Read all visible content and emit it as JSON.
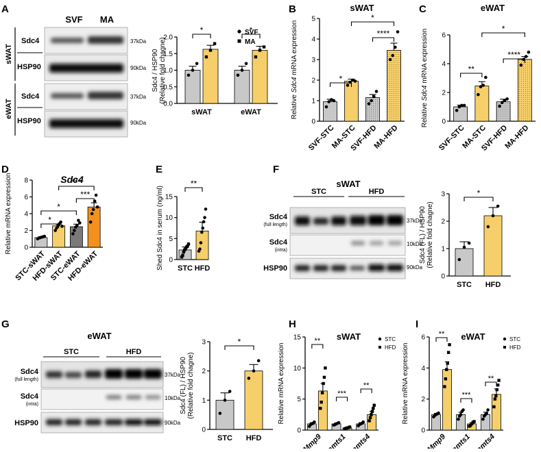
{
  "panel_letters": {
    "A": "A",
    "B": "B",
    "C": "C",
    "D": "D",
    "E": "E",
    "F": "F",
    "G": "G",
    "H": "H",
    "I": "I"
  },
  "sig": {
    "s1": "*",
    "s2": "**",
    "s3": "***",
    "s4": "****"
  },
  "blots": {
    "A": {
      "col_svf": "SVF",
      "col_ma": "MA",
      "group_swat": "sWAT",
      "group_ewat": "eWAT",
      "sdc4": "Sdc4",
      "hsp90": "HSP90",
      "kda37": "37kDa",
      "kda90": "90kDa"
    },
    "F": {
      "title": "sWAT",
      "stc": "STC",
      "hfd": "HFD",
      "sdc4": "Sdc4",
      "full_length": "(full length)",
      "intra": "(intra)",
      "hsp90": "HSP90",
      "kda37": "37kDa",
      "kda10": "10kDa",
      "kda90": "90kDa"
    },
    "G": {
      "title": "eWAT",
      "stc": "STC",
      "hfd": "HFD",
      "sdc4": "Sdc4",
      "full_length": "(full length)",
      "intra": "(intra)",
      "hsp90": "HSP90",
      "kda37": "37kDa",
      "kda10": "10kDa",
      "kda90": "90kDa"
    }
  },
  "chart_data": [
    {
      "id": "A",
      "type": "bar",
      "title": "",
      "ylabel_1": "Sdc4 / HSP90",
      "ylabel_2": "(Relative fold chagne)",
      "ylim": [
        0,
        2.0
      ],
      "yticks": [
        "0.0",
        "0.5",
        "1.0",
        "1.5",
        "2.0"
      ],
      "categories": [
        "sWAT",
        "eWAT"
      ],
      "legend": [
        "SVF",
        "MA"
      ],
      "series": [
        {
          "name": "SVF",
          "values": [
            1.0,
            1.0
          ],
          "sem": [
            0.12,
            0.12
          ],
          "points": [
            [
              0.85,
              1.0,
              1.2
            ],
            [
              0.85,
              1.0,
              1.2
            ]
          ]
        },
        {
          "name": "MA",
          "values": [
            1.63,
            1.6
          ],
          "sem": [
            0.12,
            0.12
          ],
          "points": [
            [
              1.4,
              1.6,
              1.8
            ],
            [
              1.4,
              1.6,
              1.7
            ]
          ]
        }
      ],
      "sig": [
        "*",
        "*"
      ]
    },
    {
      "id": "B",
      "type": "bar",
      "title": "sWAT",
      "ylabel_pre": "Relative ",
      "ylabel_gene": "Sdc4",
      "ylabel_post": " mRNA expression",
      "ylim": [
        0,
        5
      ],
      "yticks": [
        "0",
        "1",
        "2",
        "3",
        "4",
        "5"
      ],
      "categories": [
        "SVF-STC",
        "MA-STC",
        "SVF-HFD",
        "MA-HFD"
      ],
      "values": [
        0.95,
        1.95,
        1.15,
        3.45
      ],
      "sem": [
        0.12,
        0.1,
        0.15,
        0.35
      ],
      "points": [
        [
          0.7,
          0.95,
          1.05,
          1.0
        ],
        [
          1.75,
          1.9,
          2.0,
          1.95
        ],
        [
          0.85,
          1.0,
          1.2,
          1.45
        ],
        [
          3.0,
          3.2,
          3.6,
          4.35
        ]
      ],
      "sig": [
        "*",
        "****",
        "*"
      ]
    },
    {
      "id": "C",
      "type": "bar",
      "title": "eWAT",
      "ylabel_pre": "Relative ",
      "ylabel_gene": "Sdc4",
      "ylabel_post": " mRNA expression",
      "ylim": [
        0,
        6
      ],
      "yticks": [
        "0",
        "2",
        "4",
        "6"
      ],
      "categories": [
        "SVF-STC",
        "MA-STC",
        "SVF-HFD",
        "MA-HFD"
      ],
      "values": [
        1.0,
        2.45,
        1.35,
        4.3
      ],
      "sem": [
        0.12,
        0.3,
        0.18,
        0.2
      ],
      "points": [
        [
          0.75,
          1.0,
          1.1,
          1.1
        ],
        [
          1.85,
          2.4,
          2.5,
          3.05
        ],
        [
          1.05,
          1.3,
          1.45,
          1.55
        ],
        [
          3.9,
          4.3,
          4.5,
          4.8
        ]
      ],
      "sig": [
        "**",
        "****",
        "*"
      ]
    },
    {
      "id": "D",
      "type": "bar",
      "title": "Sdc4",
      "ylabel": "Relative mRNA expression",
      "ylim": [
        0,
        8
      ],
      "yticks": [
        "0",
        "2",
        "4",
        "6",
        "8"
      ],
      "categories": [
        "STC-sWAT",
        "HFD-sWAT",
        "STC-eWAT",
        "HFD-eWAT"
      ],
      "values": [
        1.15,
        2.55,
        2.45,
        4.8
      ],
      "sem": [
        0.1,
        0.2,
        0.3,
        0.5
      ],
      "points": [
        [
          1.0,
          1.1,
          1.15,
          1.2,
          1.25,
          1.3
        ],
        [
          2.0,
          2.3,
          2.6,
          2.8,
          3.0,
          2.5
        ],
        [
          1.6,
          2.0,
          2.4,
          2.6,
          3.2,
          2.9
        ],
        [
          3.0,
          4.0,
          4.5,
          5.5,
          6.2,
          4.8
        ]
      ],
      "sig": [
        "*",
        "*",
        "***",
        "***"
      ]
    },
    {
      "id": "E",
      "type": "bar",
      "title": "",
      "ylabel": "Shed Sdc4 in serum (ng/ml)",
      "ylim": [
        0,
        15
      ],
      "yticks": [
        "0",
        "5",
        "10",
        "15"
      ],
      "categories": [
        "STC",
        "HFD"
      ],
      "values": [
        2.3,
        6.8
      ],
      "sem": [
        0.7,
        2.1
      ],
      "points": [
        [
          0.6,
          1.0,
          1.8,
          2.3,
          2.6,
          3.0,
          3.2,
          3.7
        ],
        [
          2.0,
          2.5,
          4.0,
          6.5,
          7.5,
          9.0,
          10.0,
          12.0
        ]
      ],
      "sig": [
        "**"
      ]
    },
    {
      "id": "F",
      "type": "bar",
      "title": "",
      "ylabel_1": "Sdc4 (FL) / HSP90",
      "ylabel_2": "(Relative fold chagne)",
      "ylim": [
        0,
        3
      ],
      "yticks": [
        "0",
        "1",
        "2",
        "3"
      ],
      "categories": [
        "STC",
        "HFD"
      ],
      "values": [
        1.0,
        2.2
      ],
      "sem": [
        0.25,
        0.3
      ],
      "points": [
        [
          0.6,
          1.05,
          1.2
        ],
        [
          1.8,
          2.2,
          2.55
        ]
      ],
      "sig": [
        "*"
      ]
    },
    {
      "id": "G",
      "type": "bar",
      "title": "",
      "ylabel_1": "Sdc4 (FL) / HSP90",
      "ylabel_2": "(Relative fold chagne)",
      "ylim": [
        0,
        3
      ],
      "yticks": [
        "0",
        "1",
        "2",
        "3"
      ],
      "categories": [
        "STC",
        "HFD"
      ],
      "values": [
        1.0,
        2.0
      ],
      "sem": [
        0.25,
        0.22
      ],
      "points": [
        [
          0.55,
          1.0,
          1.3
        ],
        [
          1.75,
          2.0,
          2.35
        ]
      ],
      "sig": [
        "*"
      ]
    },
    {
      "id": "H",
      "type": "bar",
      "title": "sWAT",
      "ylabel": "Relative mRNA expression",
      "ylim": [
        0,
        15
      ],
      "yticks": [
        "0",
        "5",
        "10",
        "15"
      ],
      "categories": [
        "Mmp9",
        "Adamts1",
        "Adamts4"
      ],
      "legend": [
        "STC",
        "HFD"
      ],
      "series": [
        {
          "name": "STC",
          "values": [
            1.0,
            1.0,
            1.0
          ],
          "sem": [
            0.2,
            0.15,
            0.2
          ],
          "points": [
            [
              0.6,
              0.9,
              1.0,
              1.1,
              1.3
            ],
            [
              0.8,
              0.9,
              1.0,
              1.1,
              1.2
            ],
            [
              0.7,
              0.9,
              1.0,
              1.1,
              1.3
            ]
          ]
        },
        {
          "name": "HFD",
          "values": [
            6.3,
            0.35,
            2.5
          ],
          "sem": [
            1.2,
            0.1,
            0.5
          ],
          "points": [
            [
              3.5,
              4.5,
              6.0,
              7.5,
              8.5,
              10.0
            ],
            [
              0.2,
              0.3,
              0.35,
              0.4,
              0.5
            ],
            [
              1.5,
              2.0,
              2.5,
              3.0,
              3.5,
              4.0
            ]
          ]
        }
      ],
      "sig": [
        "**",
        "***",
        "**"
      ]
    },
    {
      "id": "I",
      "type": "bar",
      "title": "eWAT",
      "ylabel": "Relative mRNA expression",
      "ylim": [
        0,
        6
      ],
      "yticks": [
        "0",
        "2",
        "4",
        "6"
      ],
      "categories": [
        "Mmp9",
        "Adamts1",
        "Adamts4"
      ],
      "legend": [
        "STC",
        "HFD"
      ],
      "series": [
        {
          "name": "STC",
          "values": [
            1.0,
            1.0,
            1.0
          ],
          "sem": [
            0.08,
            0.15,
            0.15
          ],
          "points": [
            [
              0.85,
              0.95,
              1.0,
              1.05,
              1.1
            ],
            [
              0.7,
              0.9,
              1.0,
              1.2,
              1.3
            ],
            [
              0.7,
              0.9,
              1.0,
              1.1,
              1.3
            ]
          ]
        },
        {
          "name": "HFD",
          "values": [
            3.9,
            0.4,
            2.3
          ],
          "sem": [
            0.5,
            0.08,
            0.35
          ],
          "points": [
            [
              2.8,
              3.3,
              3.9,
              4.3,
              5.0,
              5.5
            ],
            [
              0.25,
              0.3,
              0.4,
              0.5,
              0.55
            ],
            [
              1.5,
              2.0,
              2.2,
              2.6,
              2.9,
              3.2
            ]
          ]
        }
      ],
      "sig": [
        "**",
        "***",
        "**"
      ]
    }
  ]
}
